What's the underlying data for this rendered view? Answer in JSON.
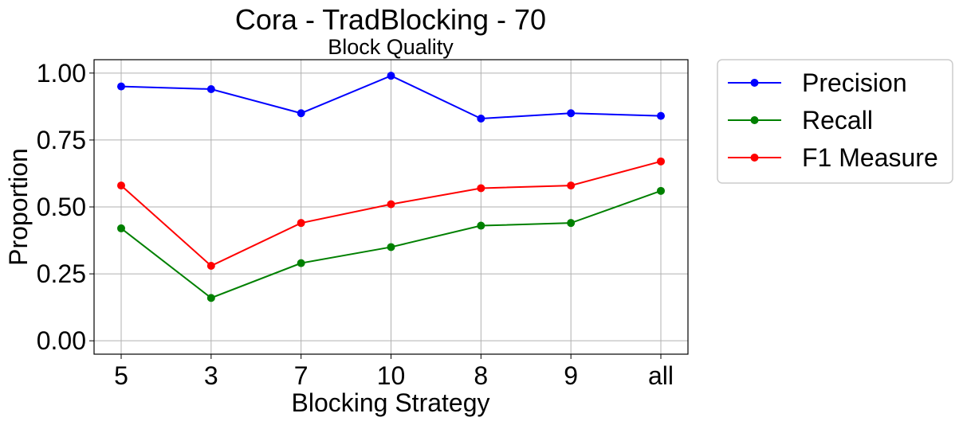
{
  "chart_data": {
    "type": "line",
    "title": "Cora - TradBlocking - 70",
    "subtitle": "Block Quality",
    "xlabel": "Blocking Strategy",
    "ylabel": "Proportion",
    "categories": [
      "5",
      "3",
      "7",
      "10",
      "8",
      "9",
      "all"
    ],
    "ylim": [
      -0.05,
      1.05
    ],
    "yticks": [
      0.0,
      0.25,
      0.5,
      0.75,
      1.0
    ],
    "ytick_labels": [
      "0.00",
      "0.25",
      "0.50",
      "0.75",
      "1.00"
    ],
    "grid": true,
    "legend_position": "outside-top-right",
    "series": [
      {
        "name": "Precision",
        "color": "#0000ff",
        "values": [
          0.95,
          0.94,
          0.85,
          0.99,
          0.83,
          0.85,
          0.84
        ]
      },
      {
        "name": "Recall",
        "color": "#008000",
        "values": [
          0.42,
          0.16,
          0.29,
          0.35,
          0.43,
          0.44,
          0.56
        ]
      },
      {
        "name": "F1 Measure",
        "color": "#ff0000",
        "values": [
          0.58,
          0.28,
          0.44,
          0.51,
          0.57,
          0.58,
          0.67
        ]
      }
    ]
  }
}
